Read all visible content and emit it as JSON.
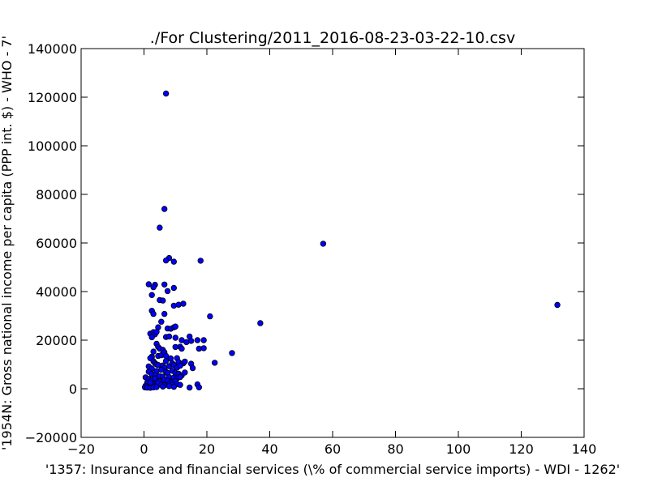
{
  "chart_data": {
    "type": "scatter",
    "title": "./For Clustering/2011_2016-08-23-03-22-10.csv",
    "xlabel": "'1357: Insurance and financial services  (\\% of commercial service imports) - WDI - 1262'",
    "ylabel": "'1954N: Gross national income per capita (PPP int. $) - WHO - 7'",
    "xlim": [
      -20,
      140
    ],
    "ylim": [
      -20000,
      140000
    ],
    "xticks": [
      -20,
      0,
      20,
      40,
      60,
      80,
      100,
      120,
      140
    ],
    "xtick_labels": [
      "−20",
      "0",
      "20",
      "40",
      "60",
      "80",
      "100",
      "120",
      "140"
    ],
    "yticks": [
      -20000,
      0,
      20000,
      40000,
      60000,
      80000,
      100000,
      120000,
      140000
    ],
    "ytick_labels": [
      "−20000",
      "0",
      "20000",
      "40000",
      "60000",
      "80000",
      "100000",
      "120000",
      "140000"
    ],
    "grid": false,
    "colors": {
      "marker_fill": "#0000ff",
      "marker_edge": "#000000"
    },
    "points": [
      [
        7.0,
        121500
      ],
      [
        6.5,
        74000
      ],
      [
        5.0,
        66300
      ],
      [
        57.0,
        59700
      ],
      [
        8.0,
        53800
      ],
      [
        7.0,
        52800
      ],
      [
        9.5,
        52300
      ],
      [
        18.0,
        52700
      ],
      [
        131.5,
        34500
      ],
      [
        37.0,
        27000
      ],
      [
        21.0,
        29800
      ],
      [
        28.0,
        14700
      ],
      [
        22.5,
        10700
      ],
      [
        1.5,
        43000
      ],
      [
        3.5,
        42800
      ],
      [
        3.0,
        41800
      ],
      [
        6.5,
        42900
      ],
      [
        9.5,
        41500
      ],
      [
        7.5,
        40200
      ],
      [
        2.5,
        38600
      ],
      [
        5.0,
        36500
      ],
      [
        6.0,
        36300
      ],
      [
        9.5,
        34200
      ],
      [
        11.0,
        34600
      ],
      [
        12.5,
        35000
      ],
      [
        2.5,
        32100
      ],
      [
        3.0,
        30800
      ],
      [
        6.5,
        30800
      ],
      [
        5.5,
        27600
      ],
      [
        7.5,
        24800
      ],
      [
        8.5,
        24700
      ],
      [
        9.5,
        25300
      ],
      [
        10.0,
        25600
      ],
      [
        4.5,
        25300
      ],
      [
        2.0,
        22700
      ],
      [
        3.0,
        23300
      ],
      [
        3.5,
        22400
      ],
      [
        4.0,
        23400
      ],
      [
        2.5,
        21200
      ],
      [
        7.0,
        21300
      ],
      [
        8.0,
        21500
      ],
      [
        10.0,
        21000
      ],
      [
        12.0,
        20000
      ],
      [
        14.5,
        21500
      ],
      [
        13.5,
        19200
      ],
      [
        15.0,
        19700
      ],
      [
        17.0,
        20000
      ],
      [
        19.0,
        20000
      ],
      [
        17.5,
        16500
      ],
      [
        19.0,
        16700
      ],
      [
        11.5,
        17300
      ],
      [
        10.0,
        17200
      ],
      [
        4.0,
        18500
      ],
      [
        4.5,
        17200
      ],
      [
        5.0,
        16500
      ],
      [
        6.0,
        16000
      ],
      [
        3.0,
        15300
      ],
      [
        2.5,
        13200
      ],
      [
        2.0,
        12600
      ],
      [
        4.5,
        13500
      ],
      [
        5.5,
        13800
      ],
      [
        6.5,
        15000
      ],
      [
        7.0,
        13500
      ],
      [
        8.5,
        12500
      ],
      [
        10.5,
        12600
      ],
      [
        11.0,
        11000
      ],
      [
        12.5,
        10500
      ],
      [
        13.0,
        11200
      ],
      [
        15.0,
        10300
      ],
      [
        15.5,
        8500
      ],
      [
        3.0,
        11300
      ],
      [
        3.5,
        10500
      ],
      [
        4.0,
        10000
      ],
      [
        4.5,
        9800
      ],
      [
        6.0,
        9600
      ],
      [
        6.5,
        8500
      ],
      [
        8.0,
        9300
      ],
      [
        9.0,
        10500
      ],
      [
        9.5,
        9800
      ],
      [
        10.5,
        8700
      ],
      [
        11.5,
        9500
      ],
      [
        1.5,
        9200
      ],
      [
        2.5,
        8300
      ],
      [
        4.0,
        7300
      ],
      [
        5.5,
        7800
      ],
      [
        7.0,
        7000
      ],
      [
        7.5,
        6500
      ],
      [
        9.0,
        7400
      ],
      [
        10.0,
        6400
      ],
      [
        11.0,
        6200
      ],
      [
        12.0,
        5500
      ],
      [
        13.0,
        6700
      ],
      [
        1.5,
        7000
      ],
      [
        2.5,
        6000
      ],
      [
        3.5,
        5600
      ],
      [
        5.0,
        5200
      ],
      [
        6.0,
        5000
      ],
      [
        8.0,
        4800
      ],
      [
        9.5,
        4600
      ],
      [
        10.5,
        4200
      ],
      [
        11.5,
        4800
      ],
      [
        0.5,
        4700
      ],
      [
        1.5,
        4000
      ],
      [
        2.5,
        3500
      ],
      [
        4.0,
        3200
      ],
      [
        5.5,
        3000
      ],
      [
        6.5,
        3700
      ],
      [
        7.5,
        3300
      ],
      [
        9.0,
        2800
      ],
      [
        10.0,
        3100
      ],
      [
        1.0,
        2500
      ],
      [
        2.0,
        2200
      ],
      [
        3.0,
        1900
      ],
      [
        4.5,
        2600
      ],
      [
        5.5,
        1600
      ],
      [
        6.5,
        1400
      ],
      [
        8.0,
        1900
      ],
      [
        9.0,
        1600
      ],
      [
        10.5,
        1900
      ],
      [
        11.5,
        1600
      ],
      [
        0.5,
        1200
      ],
      [
        1.5,
        1000
      ],
      [
        2.5,
        800
      ],
      [
        3.5,
        1100
      ],
      [
        0.3,
        600
      ],
      [
        1.0,
        500
      ],
      [
        2.0,
        400
      ],
      [
        3.0,
        600
      ],
      [
        4.0,
        700
      ],
      [
        6.0,
        900
      ],
      [
        8.0,
        1100
      ],
      [
        9.5,
        800
      ],
      [
        14.5,
        500
      ],
      [
        17.0,
        1800
      ],
      [
        17.5,
        600
      ],
      [
        2.0,
        2600
      ],
      [
        3.5,
        4300
      ],
      [
        7.0,
        11400
      ],
      [
        12.0,
        16500
      ]
    ]
  }
}
